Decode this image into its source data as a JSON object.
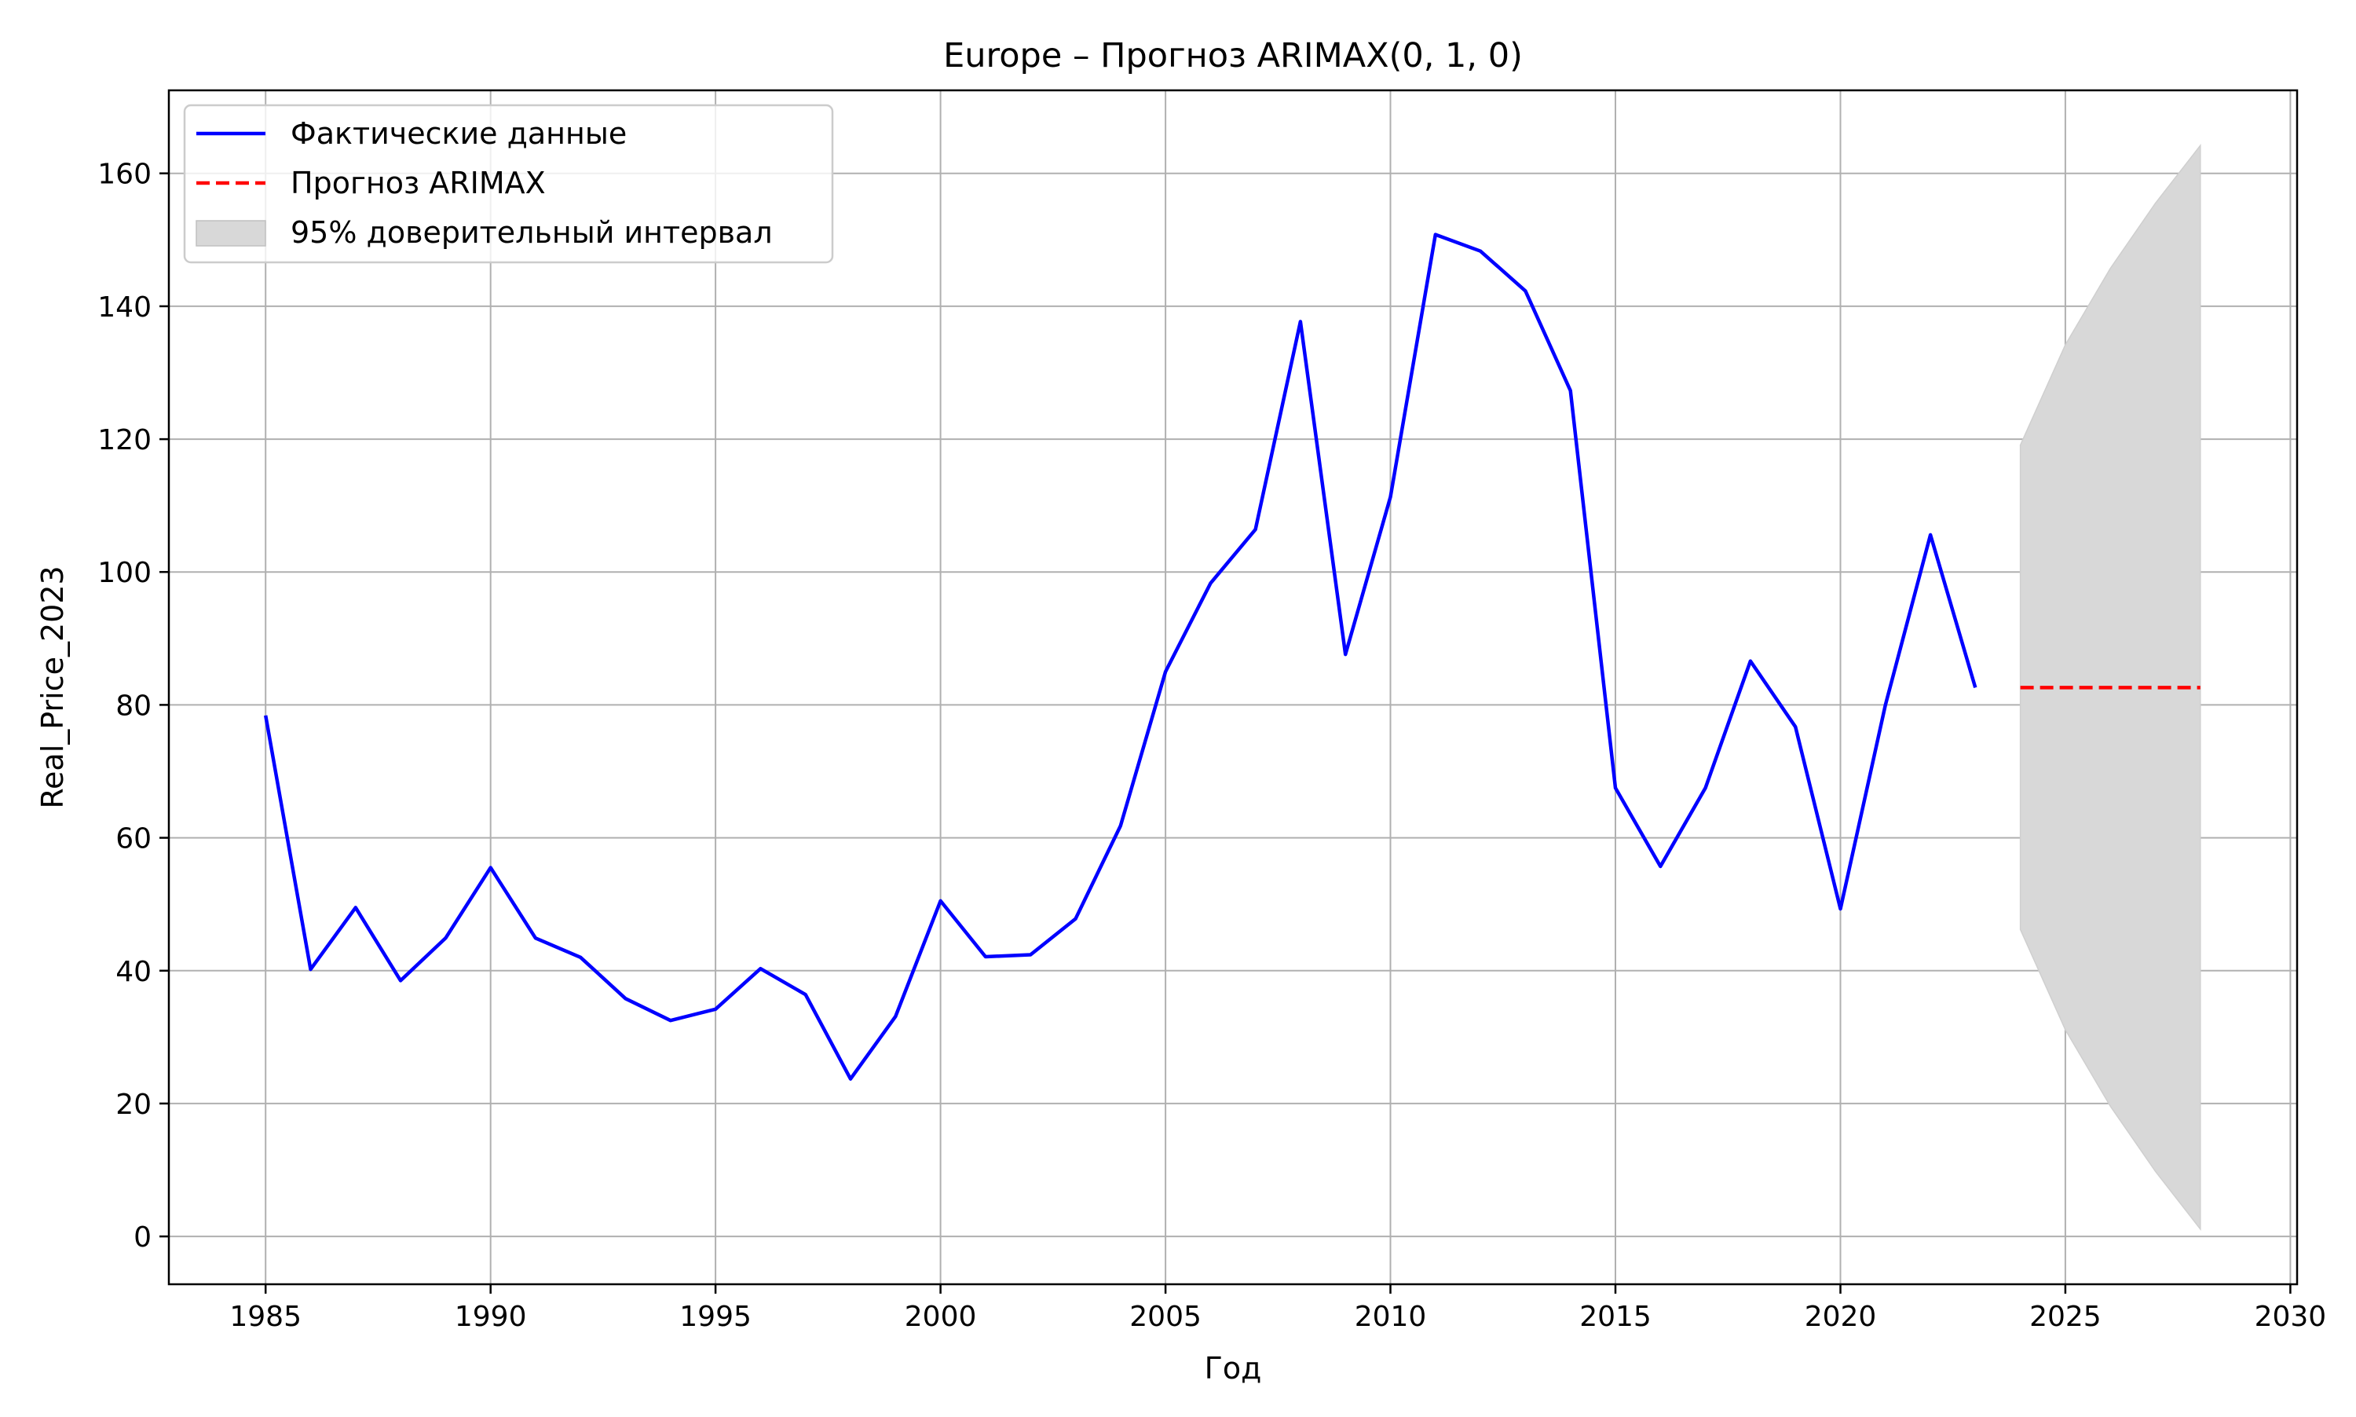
{
  "chart_data": {
    "type": "line",
    "title": "Europe – Прогноз ARIMAX(0, 1, 0)",
    "xlabel": "Год",
    "ylabel": "Real_Price_2023",
    "xlim": [
      1982.85,
      2030.15
    ],
    "ylim": [
      -7.2,
      172.5
    ],
    "x_ticks": [
      1985,
      1990,
      1995,
      2000,
      2005,
      2010,
      2015,
      2020,
      2025,
      2030
    ],
    "y_ticks": [
      0,
      20,
      40,
      60,
      80,
      100,
      120,
      140,
      160
    ],
    "grid": true,
    "legend_position": "upper-left",
    "series": [
      {
        "name": "Фактические данные",
        "style": "solid",
        "color": "#0000ff",
        "x": [
          1985,
          1986,
          1987,
          1988,
          1989,
          1990,
          1991,
          1992,
          1993,
          1994,
          1995,
          1996,
          1997,
          1998,
          1999,
          2000,
          2001,
          2002,
          2003,
          2004,
          2005,
          2006,
          2007,
          2008,
          2009,
          2010,
          2011,
          2012,
          2013,
          2014,
          2015,
          2016,
          2017,
          2018,
          2019,
          2020,
          2021,
          2022,
          2023
        ],
        "values": [
          78.4,
          40.2,
          49.5,
          38.5,
          44.9,
          55.5,
          44.9,
          42.0,
          35.8,
          32.5,
          34.2,
          40.3,
          36.4,
          23.7,
          33.1,
          50.5,
          42.1,
          42.4,
          47.8,
          61.8,
          85.0,
          98.3,
          106.4,
          137.7,
          87.6,
          111.3,
          150.8,
          148.3,
          142.3,
          127.3,
          67.5,
          55.7,
          67.5,
          86.6,
          76.7,
          49.3,
          80.0,
          105.6,
          82.6
        ]
      },
      {
        "name": "Прогноз ARIMAX",
        "style": "dashed",
        "color": "#ff0000",
        "x": [
          2024,
          2025,
          2026,
          2027,
          2028
        ],
        "values": [
          82.6,
          82.6,
          82.6,
          82.6,
          82.6
        ]
      }
    ],
    "confidence_interval": {
      "name": "95% доверительный интервал",
      "color": "#d8d8d8",
      "x": [
        2024,
        2025,
        2026,
        2027,
        2028
      ],
      "lower": [
        46.2,
        31.1,
        19.6,
        9.8,
        1.1
      ],
      "upper": [
        119.1,
        134.2,
        145.7,
        155.5,
        164.2
      ]
    }
  }
}
